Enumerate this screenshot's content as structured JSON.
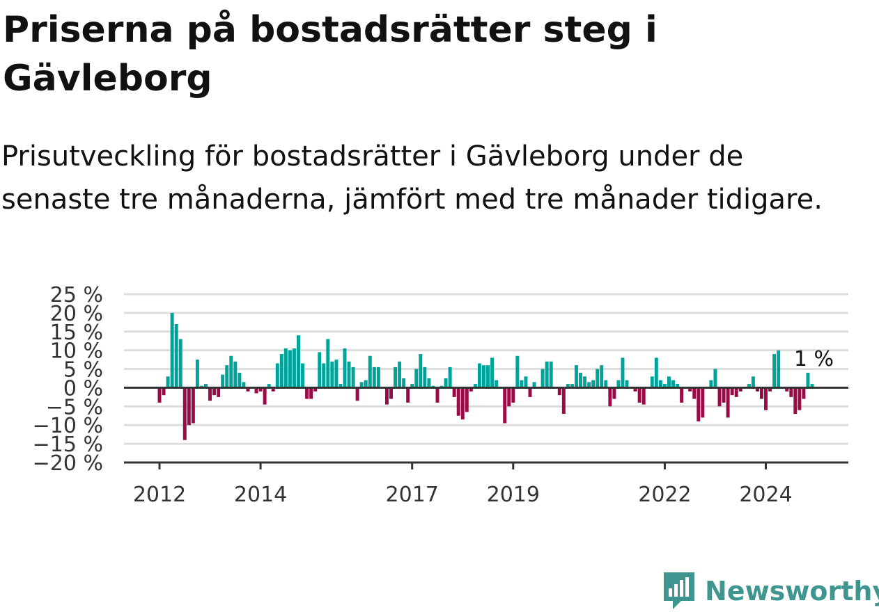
{
  "title": "Priserna på bostadsrätter steg i Gävleborg",
  "subtitle": "Prisutveckling för bostadsrätter i Gävleborg under de senaste tre månaderna, jämfört med tre månader tidigare.",
  "brand": {
    "name": "Newsworthy",
    "color": "#3f9690",
    "icon": "bar-chart-speech-bubble-icon"
  },
  "chart_data": {
    "type": "bar",
    "title": "Priserna på bostadsrätter steg i Gävleborg",
    "subtitle": "Prisutveckling för bostadsrätter i Gävleborg under de senaste tre månaderna, jämfört med tre månader tidigare.",
    "xlabel": "",
    "ylabel": "",
    "ylim": [
      -20,
      25
    ],
    "yticks": [
      25,
      20,
      15,
      10,
      5,
      0,
      -5,
      -10,
      -15,
      -20
    ],
    "ytick_labels": [
      "25 %",
      "20 %",
      "15 %",
      "10 %",
      "5 %",
      "0 %",
      "−5 %",
      "−10 %",
      "−15 %",
      "−20 %"
    ],
    "xticks": [
      {
        "label": "2012",
        "index": 0
      },
      {
        "label": "2014",
        "index": 24
      },
      {
        "label": "2017",
        "index": 60
      },
      {
        "label": "2019",
        "index": 84
      },
      {
        "label": "2022",
        "index": 120
      },
      {
        "label": "2024",
        "index": 144
      }
    ],
    "start": "2012-01",
    "frequency": "monthly",
    "grid": true,
    "colors": {
      "positive": "#00a39a",
      "negative": "#9b0a47",
      "grid": "#dddddd",
      "axis": "#333333"
    },
    "annotation": {
      "text": "1 %",
      "index": 155,
      "value": 1
    },
    "values": [
      -4,
      -2,
      3,
      20,
      17,
      13,
      -14,
      -10,
      -9.5,
      7.5,
      0.5,
      1,
      -3.5,
      -2,
      -2.5,
      3.5,
      6,
      8.5,
      7,
      4,
      1.5,
      -1,
      0,
      -1.5,
      -1,
      -4.5,
      1,
      -1,
      6.5,
      9,
      10.5,
      10,
      10.5,
      14,
      6.5,
      -3,
      -3,
      -1,
      9.5,
      6.5,
      13,
      7,
      7.5,
      1,
      10.5,
      7,
      5.5,
      -3.5,
      1.5,
      2,
      8.5,
      5.5,
      5.5,
      0,
      -4.5,
      -3,
      5.5,
      7,
      2.5,
      -4,
      1,
      5,
      9,
      5.5,
      2.5,
      0.5,
      -4,
      0.5,
      2.5,
      5.5,
      -2.5,
      -7.5,
      -8.5,
      -6.5,
      -1,
      1,
      6.5,
      6,
      6,
      8,
      2,
      0,
      -9.5,
      -5,
      -4,
      8.5,
      2,
      3,
      -2.5,
      1.5,
      0,
      5,
      7,
      7,
      0,
      -2,
      -7,
      1,
      1,
      6,
      4,
      3,
      1.5,
      2,
      5,
      6,
      2,
      -5,
      -3,
      2,
      8,
      2,
      0,
      -1,
      -4,
      -4.5,
      0,
      3,
      8,
      2,
      1,
      3,
      2,
      1,
      -4,
      0,
      -1,
      -3,
      -9,
      -8,
      0,
      2,
      5,
      -5,
      -4,
      -8,
      -2,
      -2.5,
      -1,
      0,
      1,
      3,
      -1,
      -3,
      -6,
      -1,
      9,
      10,
      0,
      -1,
      -2.5,
      -7,
      -6,
      -3,
      4,
      1
    ]
  }
}
